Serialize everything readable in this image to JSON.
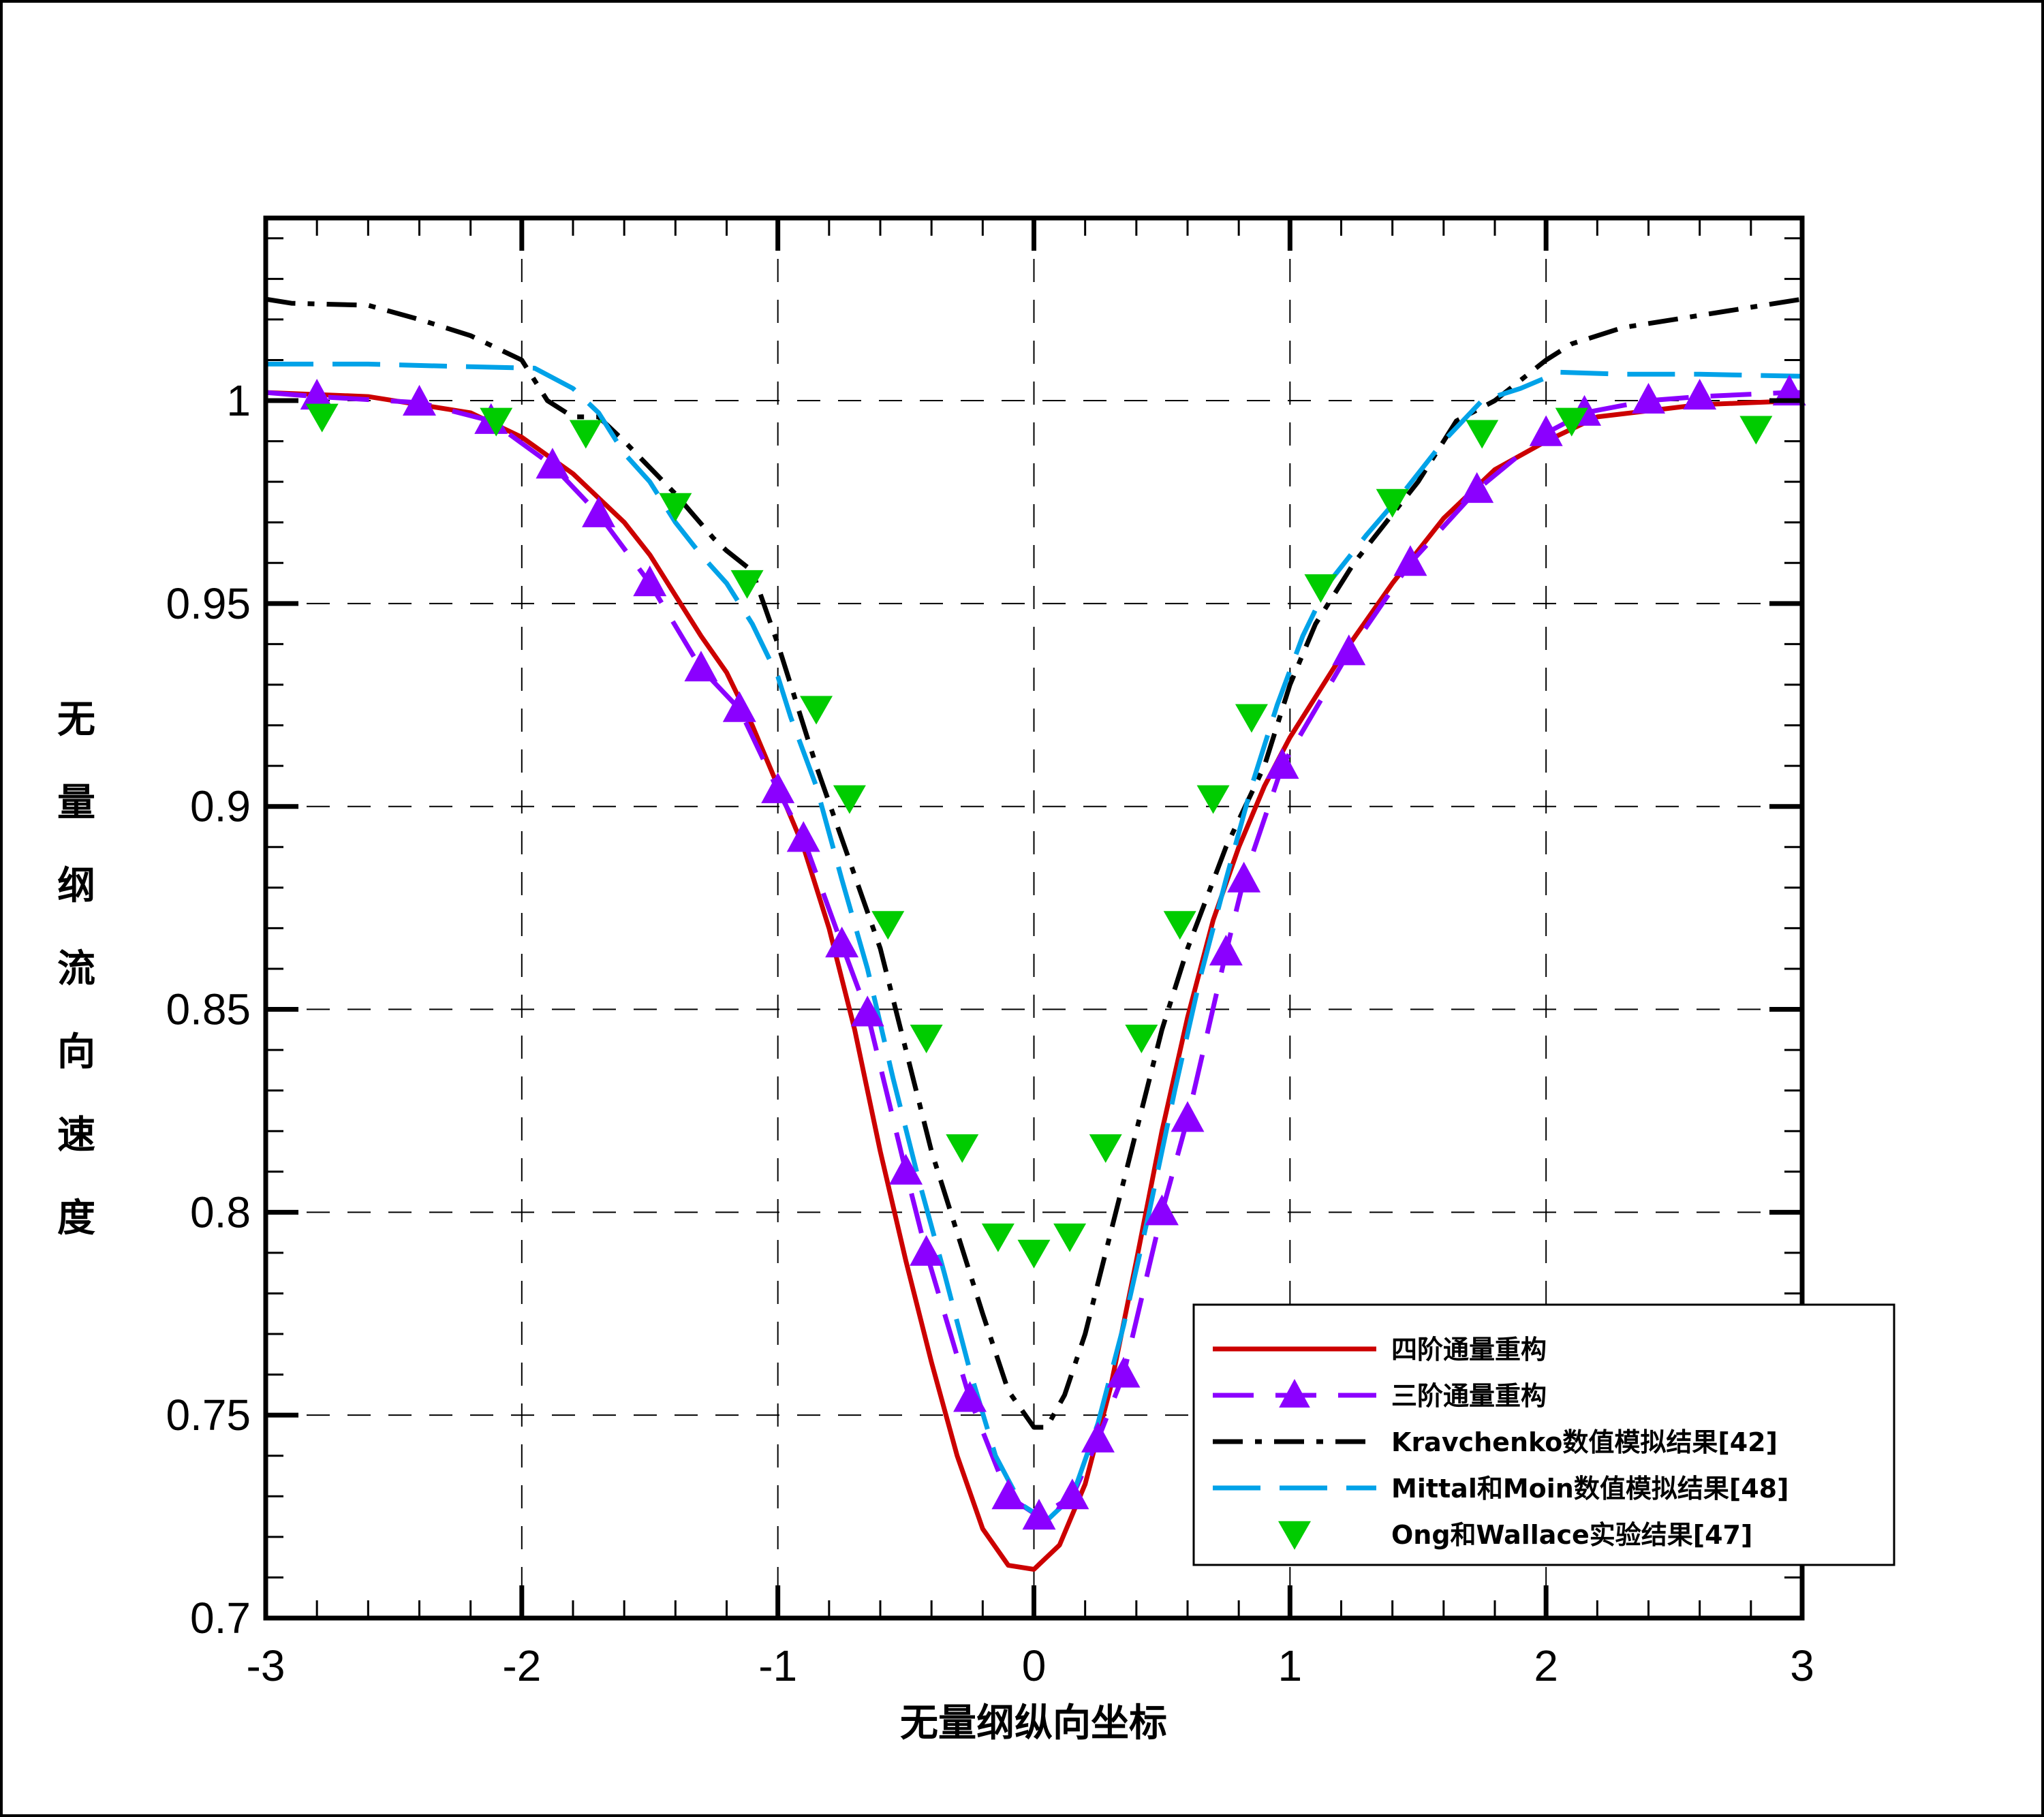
{
  "chart_data": {
    "type": "line",
    "title": "",
    "xlabel": "无量纲纵向坐标",
    "ylabel": "无量纲流向速度",
    "xlim": [
      -3,
      3
    ],
    "ylim": [
      0.7,
      1.045
    ],
    "xticks": [
      -3,
      -2,
      -1,
      0,
      1,
      2,
      3
    ],
    "xtick_labels": [
      "-3",
      "-2",
      "-1",
      "0",
      "1",
      "2",
      "3"
    ],
    "yticks": [
      0.7,
      0.75,
      0.8,
      0.85,
      0.9,
      0.95,
      1
    ],
    "ytick_labels": [
      "0.7",
      "0.75",
      "0.8",
      "0.85",
      "0.9",
      "0.95",
      "1"
    ],
    "grid": true,
    "legend_position": "bottom-right",
    "series": [
      {
        "name": "四阶通量重构",
        "color": "#cc0000",
        "style": "solid",
        "marker": "none",
        "points": [
          [
            -3.0,
            1.002
          ],
          [
            -2.6,
            1.001
          ],
          [
            -2.2,
            0.997
          ],
          [
            -2.0,
            0.991
          ],
          [
            -1.8,
            0.982
          ],
          [
            -1.6,
            0.97
          ],
          [
            -1.5,
            0.962
          ],
          [
            -1.4,
            0.952
          ],
          [
            -1.3,
            0.942
          ],
          [
            -1.2,
            0.933
          ],
          [
            -1.1,
            0.92
          ],
          [
            -1.0,
            0.905
          ],
          [
            -0.9,
            0.89
          ],
          [
            -0.8,
            0.87
          ],
          [
            -0.7,
            0.845
          ],
          [
            -0.6,
            0.815
          ],
          [
            -0.5,
            0.788
          ],
          [
            -0.4,
            0.763
          ],
          [
            -0.3,
            0.74
          ],
          [
            -0.2,
            0.722
          ],
          [
            -0.1,
            0.713
          ],
          [
            0.0,
            0.712
          ],
          [
            0.1,
            0.718
          ],
          [
            0.2,
            0.733
          ],
          [
            0.3,
            0.757
          ],
          [
            0.4,
            0.788
          ],
          [
            0.5,
            0.82
          ],
          [
            0.6,
            0.848
          ],
          [
            0.7,
            0.872
          ],
          [
            0.8,
            0.89
          ],
          [
            0.9,
            0.905
          ],
          [
            1.0,
            0.917
          ],
          [
            1.2,
            0.937
          ],
          [
            1.4,
            0.955
          ],
          [
            1.6,
            0.971
          ],
          [
            1.8,
            0.983
          ],
          [
            2.0,
            0.99
          ],
          [
            2.2,
            0.996
          ],
          [
            2.6,
            0.999
          ],
          [
            3.0,
            1.0
          ]
        ]
      },
      {
        "name": "三阶通量重构",
        "color": "#8b00ff",
        "style": "dashed",
        "marker": "triangle-up",
        "points": [
          [
            -3.0,
            1.002
          ],
          [
            -2.8,
            1.001
          ],
          [
            -2.4,
            0.9995
          ],
          [
            -2.12,
            0.995
          ],
          [
            -1.88,
            0.984
          ],
          [
            -1.7,
            0.972
          ],
          [
            -1.5,
            0.955
          ],
          [
            -1.3,
            0.934
          ],
          [
            -1.15,
            0.924
          ],
          [
            -1.0,
            0.904
          ],
          [
            -0.9,
            0.892
          ],
          [
            -0.75,
            0.866
          ],
          [
            -0.65,
            0.849
          ],
          [
            -0.5,
            0.81
          ],
          [
            -0.42,
            0.79
          ],
          [
            -0.25,
            0.754
          ],
          [
            -0.1,
            0.73
          ],
          [
            0.02,
            0.725
          ],
          [
            0.15,
            0.73
          ],
          [
            0.25,
            0.744
          ],
          [
            0.35,
            0.76
          ],
          [
            0.5,
            0.8
          ],
          [
            0.6,
            0.823
          ],
          [
            0.75,
            0.864
          ],
          [
            0.82,
            0.882
          ],
          [
            0.97,
            0.91
          ],
          [
            1.23,
            0.938
          ],
          [
            1.47,
            0.96
          ],
          [
            1.73,
            0.978
          ],
          [
            2.0,
            0.992
          ],
          [
            2.15,
            0.997
          ],
          [
            2.4,
            1.0
          ],
          [
            2.6,
            1.001
          ],
          [
            2.95,
            1.002
          ],
          [
            3.0,
            1.002
          ]
        ]
      },
      {
        "name": "Kravchenko数值模拟结果[42]",
        "color": "#000000",
        "style": "dashdot",
        "marker": "none",
        "points": [
          [
            -3.0,
            1.025
          ],
          [
            -2.9,
            1.024
          ],
          [
            -2.6,
            1.0235
          ],
          [
            -2.4,
            1.02
          ],
          [
            -2.2,
            1.016
          ],
          [
            -2.0,
            1.01
          ],
          [
            -1.9,
            1.0
          ],
          [
            -1.8,
            0.996
          ],
          [
            -1.7,
            0.996
          ],
          [
            -1.6,
            0.99
          ],
          [
            -1.4,
            0.977
          ],
          [
            -1.25,
            0.966
          ],
          [
            -1.2,
            0.963
          ],
          [
            -1.1,
            0.958
          ],
          [
            -1.0,
            0.94
          ],
          [
            -0.95,
            0.93
          ],
          [
            -0.85,
            0.91
          ],
          [
            -0.75,
            0.892
          ],
          [
            -0.6,
            0.865
          ],
          [
            -0.5,
            0.84
          ],
          [
            -0.4,
            0.815
          ],
          [
            -0.3,
            0.795
          ],
          [
            -0.2,
            0.775
          ],
          [
            -0.1,
            0.756
          ],
          [
            0.0,
            0.747
          ],
          [
            0.05,
            0.747
          ],
          [
            0.12,
            0.755
          ],
          [
            0.2,
            0.77
          ],
          [
            0.3,
            0.795
          ],
          [
            0.4,
            0.82
          ],
          [
            0.5,
            0.845
          ],
          [
            0.6,
            0.865
          ],
          [
            0.75,
            0.89
          ],
          [
            0.9,
            0.91
          ],
          [
            1.0,
            0.93
          ],
          [
            1.1,
            0.945
          ],
          [
            1.25,
            0.96
          ],
          [
            1.4,
            0.972
          ],
          [
            1.5,
            0.98
          ],
          [
            1.65,
            0.995
          ],
          [
            1.8,
            1.0
          ],
          [
            2.0,
            1.01
          ],
          [
            2.1,
            1.014
          ],
          [
            2.3,
            1.018
          ],
          [
            2.5,
            1.02
          ],
          [
            2.8,
            1.023
          ],
          [
            3.0,
            1.025
          ]
        ]
      },
      {
        "name": "Mittal和Moin数值模拟结果[48]",
        "color": "#00a2e8",
        "style": "longdash",
        "marker": "none",
        "points": [
          [
            -3.0,
            1.009
          ],
          [
            -2.6,
            1.009
          ],
          [
            -2.3,
            1.0085
          ],
          [
            -1.95,
            1.008
          ],
          [
            -1.8,
            1.003
          ],
          [
            -1.7,
            0.997
          ],
          [
            -1.6,
            0.987
          ],
          [
            -1.5,
            0.98
          ],
          [
            -1.4,
            0.97
          ],
          [
            -1.3,
            0.962
          ],
          [
            -1.2,
            0.955
          ],
          [
            -1.1,
            0.945
          ],
          [
            -1.0,
            0.932
          ],
          [
            -0.95,
            0.922
          ],
          [
            -0.85,
            0.905
          ],
          [
            -0.75,
            0.882
          ],
          [
            -0.65,
            0.86
          ],
          [
            -0.55,
            0.833
          ],
          [
            -0.45,
            0.808
          ],
          [
            -0.35,
            0.785
          ],
          [
            -0.25,
            0.761
          ],
          [
            -0.15,
            0.74
          ],
          [
            -0.05,
            0.728
          ],
          [
            0.05,
            0.724
          ],
          [
            0.15,
            0.73
          ],
          [
            0.25,
            0.748
          ],
          [
            0.35,
            0.772
          ],
          [
            0.45,
            0.8
          ],
          [
            0.55,
            0.83
          ],
          [
            0.65,
            0.858
          ],
          [
            0.75,
            0.882
          ],
          [
            0.85,
            0.905
          ],
          [
            0.95,
            0.925
          ],
          [
            1.05,
            0.942
          ],
          [
            1.15,
            0.955
          ],
          [
            1.3,
            0.967
          ],
          [
            1.45,
            0.978
          ],
          [
            1.6,
            0.99
          ],
          [
            1.75,
            1.0
          ],
          [
            1.9,
            1.003
          ],
          [
            2.05,
            1.007
          ],
          [
            2.3,
            1.0065
          ],
          [
            2.6,
            1.0065
          ],
          [
            3.0,
            1.006
          ]
        ]
      },
      {
        "name": "Ong和Wallace实验结果[47]",
        "color": "#00cc00",
        "style": "none",
        "marker": "triangle-down",
        "points": [
          [
            -2.78,
            0.996
          ],
          [
            -2.1,
            0.995
          ],
          [
            -1.75,
            0.992
          ],
          [
            -1.4,
            0.974
          ],
          [
            -1.12,
            0.955
          ],
          [
            -0.85,
            0.924
          ],
          [
            -0.72,
            0.902
          ],
          [
            -0.57,
            0.871
          ],
          [
            -0.42,
            0.843
          ],
          [
            -0.28,
            0.816
          ],
          [
            -0.14,
            0.794
          ],
          [
            0.0,
            0.79
          ],
          [
            0.14,
            0.794
          ],
          [
            0.28,
            0.816
          ],
          [
            0.42,
            0.843
          ],
          [
            0.57,
            0.871
          ],
          [
            0.7,
            0.902
          ],
          [
            0.85,
            0.922
          ],
          [
            1.12,
            0.954
          ],
          [
            1.4,
            0.975
          ],
          [
            1.75,
            0.992
          ],
          [
            2.1,
            0.995
          ],
          [
            2.82,
            0.993
          ]
        ]
      }
    ]
  }
}
